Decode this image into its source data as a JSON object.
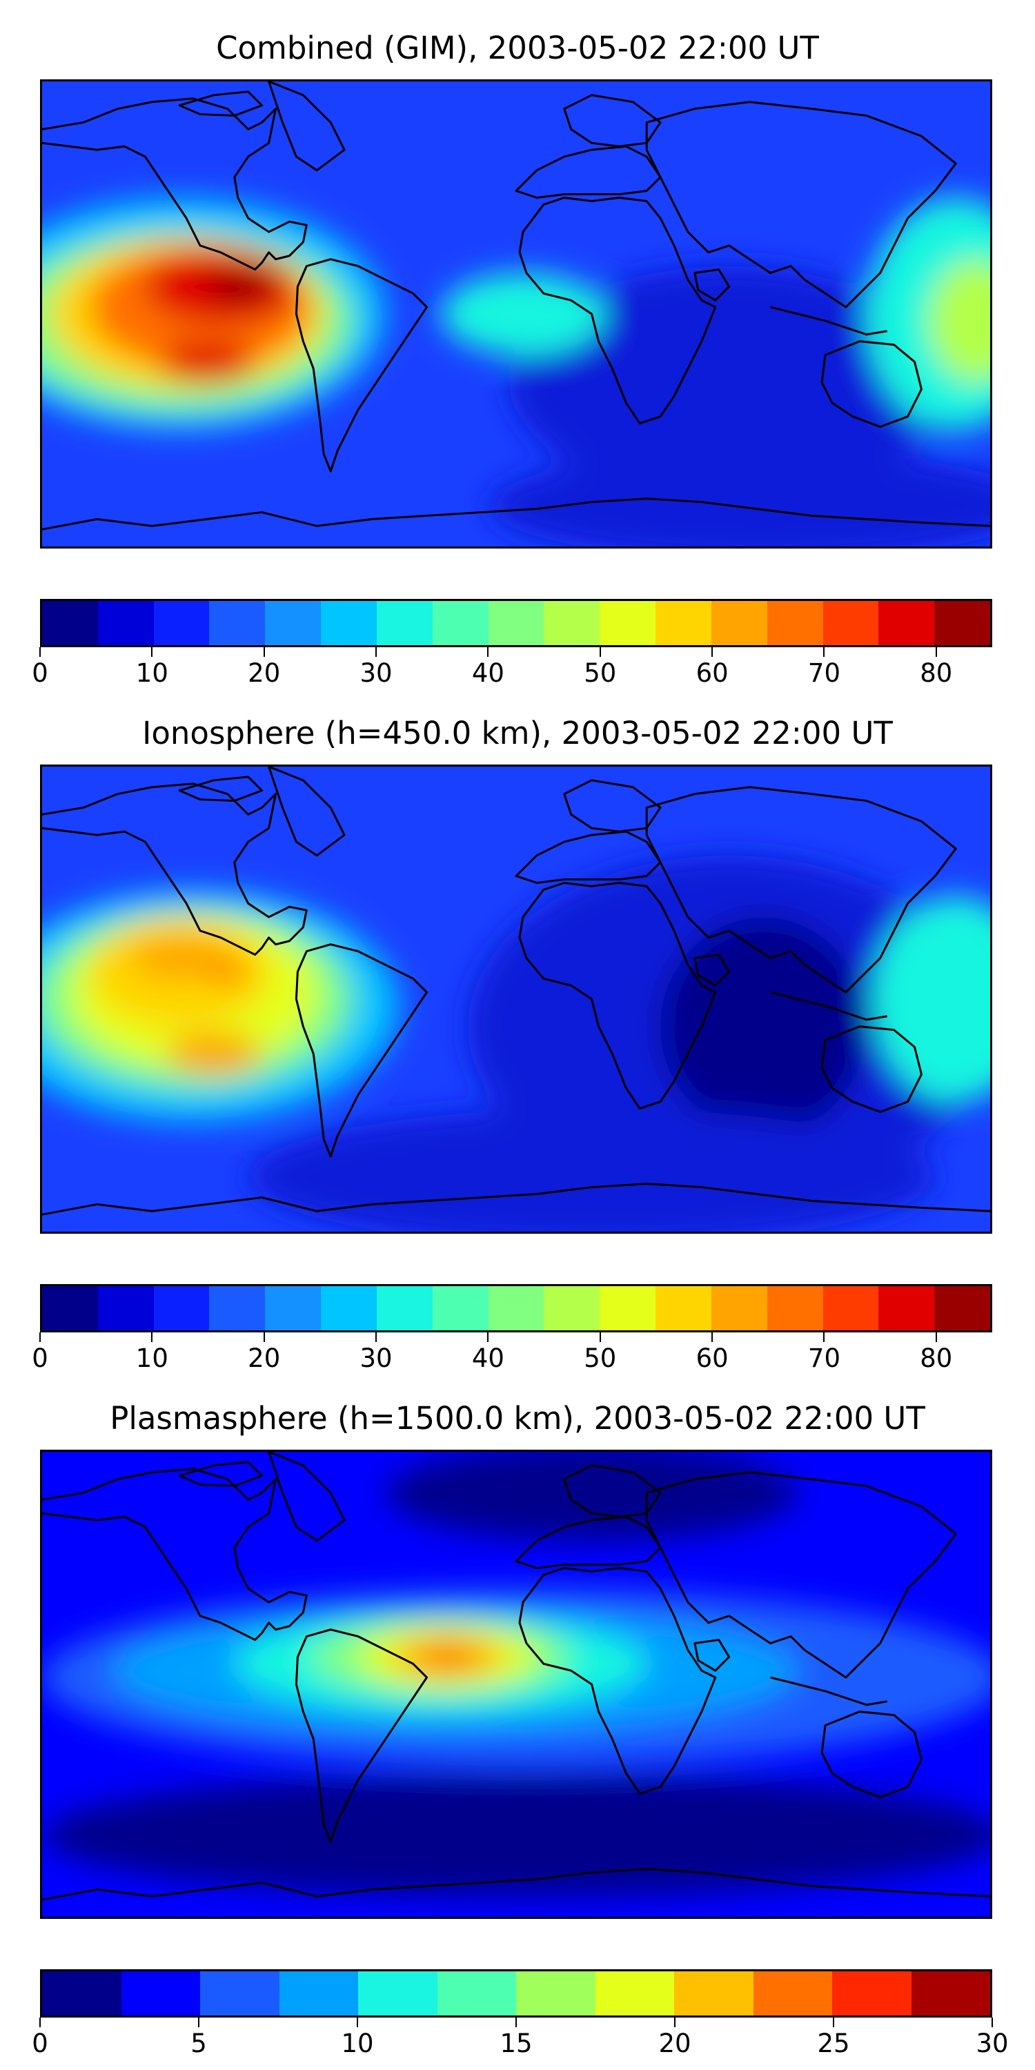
{
  "panels": [
    {
      "title": "Combined (GIM), 2003-05-02 22:00 UT",
      "colorbar": {
        "colors": [
          "#00008b",
          "#0000d8",
          "#0a20ff",
          "#1a5bff",
          "#1591ff",
          "#00c5ff",
          "#19f5e0",
          "#4dffb0",
          "#80ff80",
          "#b4ff4a",
          "#e4ff1a",
          "#ffd500",
          "#ffa400",
          "#ff7000",
          "#ff3c00",
          "#e00000",
          "#9a0000"
        ],
        "ticks": [
          "0",
          "10",
          "20",
          "30",
          "40",
          "50",
          "60",
          "70",
          "80"
        ]
      }
    },
    {
      "title": "Ionosphere  (h=450.0 km), 2003-05-02 22:00 UT",
      "colorbar": {
        "colors": [
          "#00008b",
          "#0000d8",
          "#0a20ff",
          "#1a5bff",
          "#1591ff",
          "#00c5ff",
          "#19f5e0",
          "#4dffb0",
          "#80ff80",
          "#b4ff4a",
          "#e4ff1a",
          "#ffd500",
          "#ffa400",
          "#ff7000",
          "#ff3c00",
          "#e00000",
          "#9a0000"
        ],
        "ticks": [
          "0",
          "10",
          "20",
          "30",
          "40",
          "50",
          "60",
          "70",
          "80"
        ]
      }
    },
    {
      "title": "Plasmasphere (h=1500.0 km), 2003-05-02 22:00 UT",
      "colorbar": {
        "colors": [
          "#00008b",
          "#0000ff",
          "#1a5bff",
          "#00a0ff",
          "#19f5e0",
          "#4dffb0",
          "#a0ff5a",
          "#e4ff1a",
          "#ffc000",
          "#ff7000",
          "#ff2800",
          "#a80000"
        ],
        "ticks": [
          "0",
          "5",
          "10",
          "15",
          "20",
          "25",
          "30"
        ]
      }
    }
  ]
}
